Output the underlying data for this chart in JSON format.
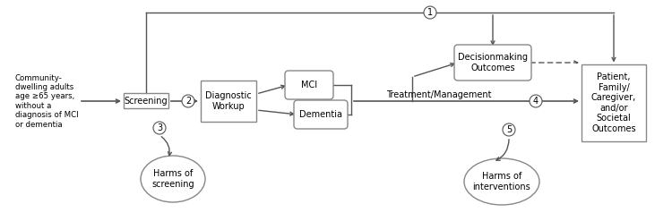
{
  "bg_color": "#ffffff",
  "text_color": "#000000",
  "box_edge_color": "#888888",
  "box_face_color": "#ffffff",
  "community_text": "Community-\ndwelling adults\nage ≥65 years,\nwithout a\ndiagnosis of MCI\nor dementia",
  "screening_label": "Screening",
  "diagnostic_label": "Diagnostic\nWorkup",
  "mci_label": "MCI",
  "dementia_label": "Dementia",
  "treatment_label": "Treatment/Management",
  "decisionmaking_label": "Decisionmaking\nOutcomes",
  "patient_label": "Patient,\nFamily/\nCaregiver,\nand/or\nSocietal\nOutcomes",
  "harms_screening_label": "Harms of\nscreening",
  "harms_interventions_label": "Harms of\ninterventions",
  "figsize": [
    7.5,
    2.47
  ],
  "dpi": 100
}
